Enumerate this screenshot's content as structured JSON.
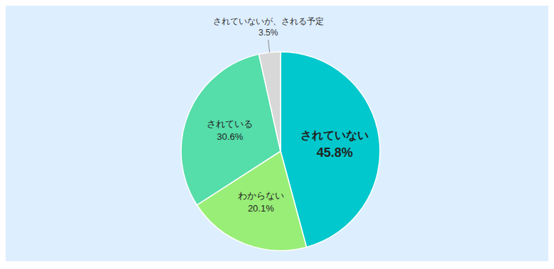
{
  "chart_data": {
    "type": "pie",
    "categories": [
      "されていない",
      "わからない",
      "されている",
      "されていないが、される予定"
    ],
    "values": [
      45.8,
      20.1,
      30.6,
      3.5
    ],
    "value_labels": [
      "45.8%",
      "20.1%",
      "30.6%",
      "3.5%"
    ],
    "colors": [
      "#00C8CC",
      "#99EE77",
      "#55DDAA",
      "#D8D8D8"
    ],
    "data_labels": true
  }
}
